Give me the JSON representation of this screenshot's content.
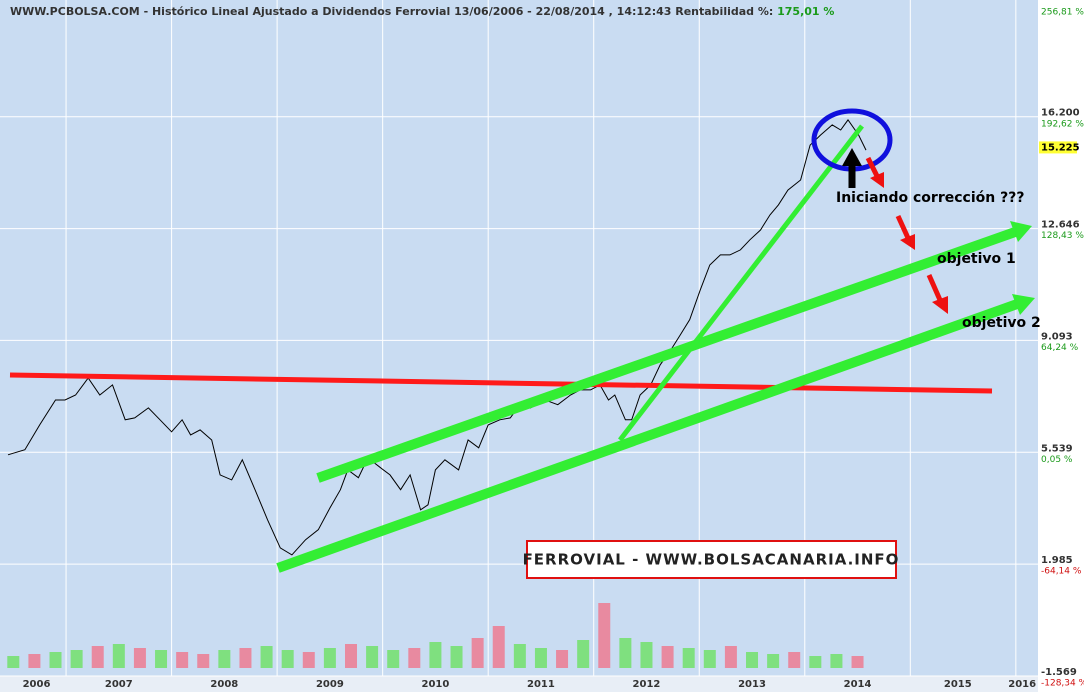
{
  "header": {
    "title": "WWW.PCBOLSA.COM - Histórico Lineal  Ajustado a Dividendos Ferrovial 13/06/2006 - 22/08/2014 , 14:12:43 Rentabilidad %:",
    "return": "175,01 %"
  },
  "chart_data": [
    {
      "type": "line",
      "name": "Ferrovial",
      "x": [
        2006.45,
        2006.61,
        2006.75,
        2006.9,
        2006.99,
        2007.09,
        2007.21,
        2007.32,
        2007.44,
        2007.56,
        2007.65,
        2007.78,
        2007.89,
        2008.0,
        2008.1,
        2008.18,
        2008.27,
        2008.38,
        2008.46,
        2008.57,
        2008.67,
        2008.79,
        2008.91,
        2009.03,
        2009.14,
        2009.27,
        2009.39,
        2009.5,
        2009.6,
        2009.67,
        2009.77,
        2009.86,
        2009.98,
        2010.07,
        2010.17,
        2010.26,
        2010.36,
        2010.43,
        2010.5,
        2010.59,
        2010.72,
        2010.81,
        2010.91,
        2011.0,
        2011.11,
        2011.21,
        2011.3,
        2011.4,
        2011.54,
        2011.66,
        2011.78,
        2011.87,
        2011.97,
        2012.06,
        2012.14,
        2012.2,
        2012.3,
        2012.36,
        2012.44,
        2012.54,
        2012.63,
        2012.73,
        2012.82,
        2012.91,
        2013.01,
        2013.1,
        2013.2,
        2013.29,
        2013.39,
        2013.48,
        2013.58,
        2013.67,
        2013.75,
        2013.84,
        2013.96,
        2014.05,
        2014.15,
        2014.26,
        2014.34,
        2014.41,
        2014.51,
        2014.58
      ],
      "values": [
        5.46,
        5.62,
        6.41,
        7.2,
        7.2,
        7.36,
        7.9,
        7.36,
        7.68,
        6.57,
        6.63,
        6.95,
        6.57,
        6.19,
        6.57,
        6.09,
        6.25,
        5.93,
        4.82,
        4.66,
        5.3,
        4.35,
        3.39,
        2.5,
        2.28,
        2.76,
        3.08,
        3.77,
        4.35,
        4.98,
        4.73,
        5.36,
        5.05,
        4.82,
        4.35,
        4.82,
        3.71,
        3.87,
        4.98,
        5.3,
        4.98,
        5.93,
        5.68,
        6.41,
        6.57,
        6.63,
        7.05,
        6.95,
        7.2,
        7.05,
        7.36,
        7.52,
        7.52,
        7.68,
        7.2,
        7.36,
        6.57,
        6.57,
        7.36,
        7.68,
        8.32,
        8.79,
        9.27,
        9.75,
        10.7,
        11.49,
        11.81,
        11.81,
        11.97,
        12.29,
        12.6,
        13.08,
        13.4,
        13.87,
        14.19,
        15.3,
        15.62,
        15.94,
        15.78,
        16.1,
        15.62,
        15.14
      ],
      "color": "#000000",
      "xlim": [
        2006.374,
        2016.21
      ],
      "xticks": [
        {
          "value": 2006.72,
          "label": "2006"
        },
        {
          "value": 2007.5,
          "label": "2007"
        },
        {
          "value": 2008.5,
          "label": "2008"
        },
        {
          "value": 2009.5,
          "label": "2009"
        },
        {
          "value": 2010.5,
          "label": "2010"
        },
        {
          "value": 2011.5,
          "label": "2011"
        },
        {
          "value": 2012.5,
          "label": "2012"
        },
        {
          "value": 2013.5,
          "label": "2013"
        },
        {
          "value": 2014.5,
          "label": "2014"
        },
        {
          "value": 2015.45,
          "label": "2015"
        },
        {
          "value": 2016.06,
          "label": "2016"
        }
      ],
      "xgrid": [
        2007,
        2008,
        2009,
        2010,
        2011,
        2012,
        2013,
        2014,
        2015,
        2016
      ],
      "ylim": [
        -1.569,
        19.75
      ],
      "yticks": [
        {
          "value": 16.2,
          "label": "16.200"
        },
        12.646,
        9.093,
        5.539,
        1.985,
        -1.569
      ],
      "y2lim": [
        -128.34,
        256.81
      ],
      "y2ticks": [
        {
          "value": 256.81,
          "label": "256,81 %"
        },
        {
          "value": 192.62,
          "label": "192,62 %"
        },
        {
          "value": 128.43,
          "label": "128,43 %"
        },
        {
          "value": 64.24,
          "label": "64,24 %"
        },
        {
          "value": 0.05,
          "label": "0,05 %"
        },
        {
          "value": -64.14,
          "label": "-64,14 %"
        },
        {
          "value": -128.34,
          "label": "-128,34 %"
        }
      ],
      "last": {
        "value": 15.225,
        "label": "15.225"
      },
      "grid": true,
      "annotations": [
        "Iniciando corrección ???",
        "objetivo 1",
        "objetivo 2",
        "FERROVIAL - WWW.BOLSACANARIA.INFO"
      ]
    },
    {
      "type": "bar",
      "name": "Volumen",
      "x": [
        2006.5,
        2006.7,
        2006.9,
        2007.1,
        2007.3,
        2007.5,
        2007.7,
        2007.9,
        2008.1,
        2008.3,
        2008.5,
        2008.7,
        2008.9,
        2009.1,
        2009.3,
        2009.5,
        2009.7,
        2009.9,
        2010.1,
        2010.3,
        2010.5,
        2010.7,
        2010.9,
        2011.1,
        2011.3,
        2011.5,
        2011.7,
        2011.9,
        2012.1,
        2012.3,
        2012.5,
        2012.7,
        2012.9,
        2013.1,
        2013.3,
        2013.5,
        2013.7,
        2013.9,
        2014.1,
        2014.3,
        2014.5
      ],
      "values": [
        12,
        14,
        16,
        18,
        22,
        24,
        20,
        18,
        16,
        14,
        18,
        20,
        22,
        18,
        16,
        20,
        24,
        22,
        18,
        20,
        26,
        22,
        30,
        42,
        24,
        20,
        18,
        28,
        65,
        30,
        26,
        22,
        20,
        18,
        22,
        16,
        14,
        16,
        12,
        14,
        12
      ],
      "colors": [
        "#7fe07f",
        "#e88aa0",
        "#7fe07f",
        "#7fe07f",
        "#e88aa0",
        "#7fe07f",
        "#e88aa0",
        "#7fe07f",
        "#e88aa0",
        "#e88aa0",
        "#7fe07f",
        "#e88aa0",
        "#7fe07f",
        "#7fe07f",
        "#e88aa0",
        "#7fe07f",
        "#e88aa0",
        "#7fe07f",
        "#7fe07f",
        "#e88aa0",
        "#7fe07f",
        "#7fe07f",
        "#e88aa0",
        "#e88aa0",
        "#7fe07f",
        "#7fe07f",
        "#e88aa0",
        "#7fe07f",
        "#e88aa0",
        "#7fe07f",
        "#7fe07f",
        "#e88aa0",
        "#7fe07f",
        "#7fe07f",
        "#e88aa0",
        "#7fe07f",
        "#7fe07f",
        "#e88aa0",
        "#7fe07f",
        "#7fe07f",
        "#e88aa0"
      ],
      "ylim": [
        0,
        70
      ]
    }
  ]
}
